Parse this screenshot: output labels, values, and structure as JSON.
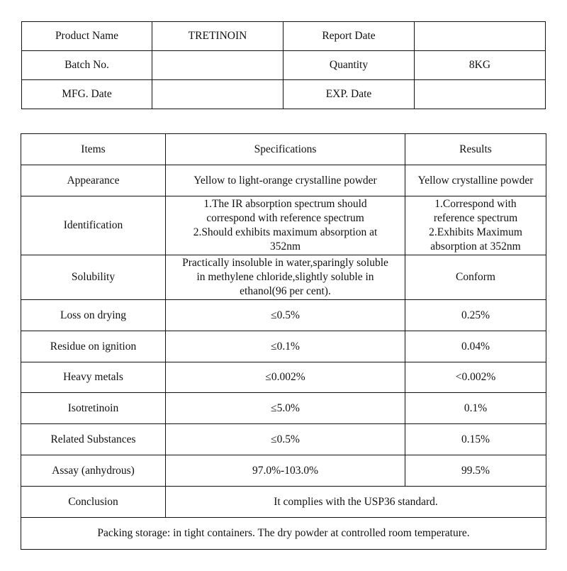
{
  "header": {
    "product_name_label": "Product Name",
    "product_name": "TRETINOIN",
    "report_date_label": "Report Date",
    "report_date": "",
    "batch_no_label": "Batch No.",
    "batch_no": "",
    "quantity_label": "Quantity",
    "quantity": "8KG",
    "mfg_date_label": "MFG. Date",
    "mfg_date": "",
    "exp_date_label": "EXP. Date",
    "exp_date": ""
  },
  "analysis": {
    "columns": [
      "Items",
      "Specifications",
      "Results"
    ],
    "rows": [
      {
        "item": "Appearance",
        "spec": [
          "Yellow to light-orange crystalline powder"
        ],
        "result": [
          "Yellow crystalline powder"
        ]
      },
      {
        "item": "Identification",
        "spec": [
          "1.The IR absorption spectrum should",
          "correspond with reference spectrum",
          "2.Should exhibits maximum absorption at",
          "352nm"
        ],
        "result": [
          "1.Correspond with",
          "reference spectrum",
          "2.Exhibits Maximum",
          "absorption at 352nm"
        ]
      },
      {
        "item": "Solubility",
        "spec": [
          "Practically insoluble in water,sparingly soluble",
          "in methylene chloride,slightly soluble in",
          "ethanol(96 per cent)."
        ],
        "result": [
          "Conform"
        ]
      },
      {
        "item": "Loss on drying",
        "spec": [
          "≤0.5%"
        ],
        "result": [
          "0.25%"
        ]
      },
      {
        "item": "Residue on ignition",
        "spec": [
          "≤0.1%"
        ],
        "result": [
          "0.04%"
        ]
      },
      {
        "item": "Heavy metals",
        "spec": [
          "≤0.002%"
        ],
        "result": [
          "<0.002%"
        ]
      },
      {
        "item": "Isotretinoin",
        "spec": [
          "≤5.0%"
        ],
        "result": [
          "0.1%"
        ]
      },
      {
        "item": "Related Substances",
        "spec": [
          "≤0.5%"
        ],
        "result": [
          "0.15%"
        ]
      },
      {
        "item": "Assay (anhydrous)",
        "spec": [
          "97.0%-103.0%"
        ],
        "result": [
          "99.5%"
        ]
      }
    ],
    "conclusion_label": "Conclusion",
    "conclusion": "It complies with  the USP36 standard.",
    "packing": "Packing storage: in tight containers. The dry powder at controlled room temperature."
  }
}
